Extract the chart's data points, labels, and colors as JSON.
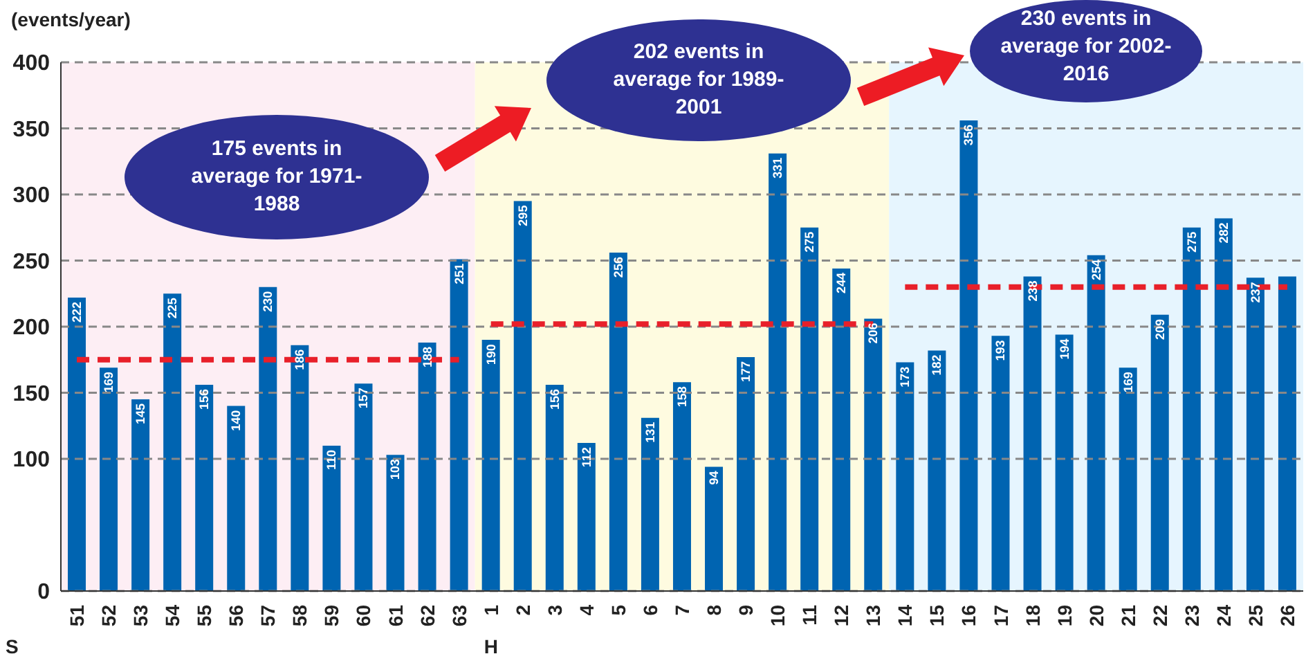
{
  "chart_data": {
    "type": "bar",
    "ylabel": "(events/year)",
    "categories": [
      "51",
      "52",
      "53",
      "54",
      "55",
      "56",
      "57",
      "58",
      "59",
      "60",
      "61",
      "62",
      "63",
      "1",
      "2",
      "3",
      "4",
      "5",
      "6",
      "7",
      "8",
      "9",
      "10",
      "11",
      "12",
      "13",
      "14",
      "15",
      "16",
      "17",
      "18",
      "19",
      "20",
      "21",
      "22",
      "23",
      "24",
      "25",
      "26"
    ],
    "series": [
      {
        "color": "#0064b1",
        "values": [
          222,
          169,
          145,
          225,
          156,
          140,
          230,
          186,
          110,
          157,
          103,
          188,
          251,
          190,
          295,
          156,
          112,
          256,
          131,
          158,
          94,
          177,
          331,
          275,
          244,
          206,
          173,
          182,
          356,
          193,
          238,
          194,
          254,
          169,
          209,
          275,
          282,
          237,
          238
        ],
        "value_labels": [
          "222",
          "169",
          "145",
          "225",
          "156",
          "140",
          "230",
          "186",
          "110",
          "157",
          "103",
          "188",
          "251",
          "190",
          "295",
          "156",
          "112",
          "256",
          "131",
          "158",
          "94",
          "177",
          "331",
          "275",
          "244",
          "206",
          "173",
          "182",
          "356",
          "193",
          "238",
          "194",
          "254",
          "169",
          "209",
          "275",
          "282",
          "237",
          null
        ]
      },
      {
        "type": "line",
        "color": "#e8202a",
        "line_style": "dashed",
        "marker": "none",
        "values": [
          175,
          175,
          175,
          175,
          175,
          175,
          175,
          175,
          175,
          175,
          175,
          175,
          175,
          null,
          null,
          null,
          null,
          null,
          null,
          null,
          null,
          null,
          null,
          null,
          null,
          null,
          null,
          null,
          null,
          null,
          null,
          null,
          null,
          null,
          null,
          null,
          null,
          null,
          null
        ]
      },
      {
        "type": "line",
        "color": "#e8202a",
        "line_style": "dashed",
        "marker": "none",
        "values": [
          null,
          null,
          null,
          null,
          null,
          null,
          null,
          null,
          null,
          null,
          null,
          null,
          null,
          202,
          202,
          202,
          202,
          202,
          202,
          202,
          202,
          202,
          202,
          202,
          202,
          202,
          null,
          null,
          null,
          null,
          null,
          null,
          null,
          null,
          null,
          null,
          null,
          null,
          null
        ]
      },
      {
        "type": "line",
        "color": "#e8202a",
        "line_style": "dashed",
        "marker": "none",
        "values": [
          null,
          null,
          null,
          null,
          null,
          null,
          null,
          null,
          null,
          null,
          null,
          null,
          null,
          null,
          null,
          null,
          null,
          null,
          null,
          null,
          null,
          null,
          null,
          null,
          null,
          null,
          230,
          230,
          230,
          230,
          230,
          230,
          230,
          230,
          230,
          230,
          230,
          230,
          230
        ]
      }
    ],
    "ylim": [
      0,
      400
    ],
    "yticks": [
      0,
      100,
      150,
      200,
      250,
      300,
      350,
      400
    ],
    "grid": "y",
    "legend": false,
    "bands": [
      {
        "axis": "x",
        "from": "51",
        "to": "63",
        "color": "#fdeef4"
      },
      {
        "axis": "x",
        "from": "1",
        "to": "13",
        "color": "#fefbe0"
      },
      {
        "axis": "x",
        "from": "14",
        "to": "26",
        "color": "#e6f5fe"
      }
    ],
    "annotations": [
      "175 events in average for 1971-1988",
      "202 events in average for 1989-2001",
      "230 events in average for 2002-2016",
      "S",
      "H"
    ]
  }
}
